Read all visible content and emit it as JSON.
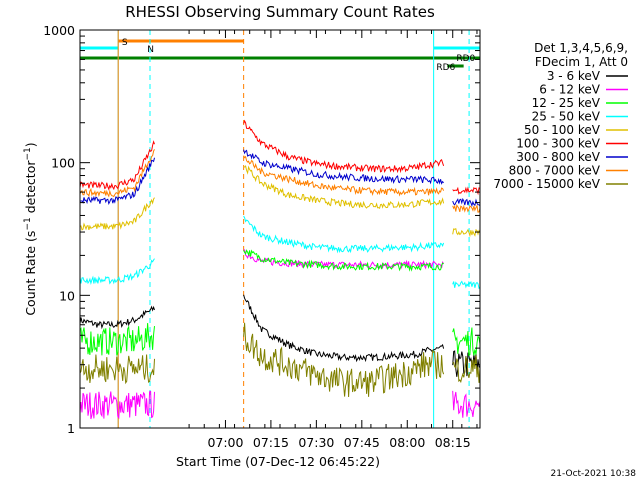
{
  "chart_data": {
    "type": "line",
    "title": "RHESSI Observing Summary Count Rates",
    "xlabel": "Start Time (07-Dec-12 06:45:22)",
    "ylabel": "Count Rate (s⁻¹ detector⁻¹)",
    "ylabel_main": "Count Rate (s",
    "ylabel_mid": " detector",
    "ylabel_end": ")",
    "ylabel_sup": "−1",
    "yscale": "log",
    "xlim_min": [
      6.2,
      8.4
    ],
    "ylim": [
      1,
      1000
    ],
    "x_ticks": [
      {
        "value": 7.0,
        "label": "07:00"
      },
      {
        "value": 7.25,
        "label": "07:15"
      },
      {
        "value": 7.5,
        "label": "07:30"
      },
      {
        "value": 7.75,
        "label": "07:45"
      },
      {
        "value": 8.0,
        "label": "08:00"
      },
      {
        "value": 8.25,
        "label": "08:15"
      }
    ],
    "y_ticks": [
      {
        "value": 1,
        "label": "1"
      },
      {
        "value": 10,
        "label": "10"
      },
      {
        "value": 100,
        "label": "100"
      },
      {
        "value": 1000,
        "label": "1000"
      }
    ],
    "legend": {
      "header": [
        "Det 1,3,4,5,6,9,",
        "FDecim 1, Att 0"
      ],
      "placement": "right"
    },
    "series": [
      {
        "name": "3 - 6 keV",
        "color": "#000000",
        "seg1": [
          6.5,
          6.0,
          6.0,
          6.5,
          8.0
        ],
        "seg2": [
          10.0,
          5.5,
          4.2,
          3.6,
          3.4,
          3.4,
          3.5,
          3.6,
          3.8,
          4.0
        ],
        "seg3": [
          3.0,
          3.0
        ]
      },
      {
        "name": "6 - 12 keV",
        "color": "#ff00ff",
        "seg1": [
          1.5,
          1.5,
          1.5,
          1.5,
          1.5
        ],
        "seg2": [
          21,
          18,
          17.5,
          17,
          17,
          17,
          17,
          17,
          17,
          17
        ],
        "seg3": [
          1.5,
          1.5
        ]
      },
      {
        "name": "12 - 25 keV",
        "color": "#00ff00",
        "seg1": [
          4.5,
          4.5,
          4.5,
          4.5,
          5.0
        ],
        "seg2": [
          22,
          19,
          17.5,
          17,
          16.5,
          16.5,
          16.5,
          16.5,
          16.5,
          16.5
        ],
        "seg3": [
          4.5,
          4.5
        ]
      },
      {
        "name": "25 - 50 keV",
        "color": "#00ffff",
        "seg1": [
          13,
          13,
          13,
          14,
          18
        ],
        "seg2": [
          38,
          28,
          25,
          23,
          22.5,
          22.5,
          23,
          23,
          23.5,
          24
        ],
        "seg3": [
          12,
          12
        ]
      },
      {
        "name": "50 - 100 keV",
        "color": "#e0c000",
        "seg1": [
          33,
          33,
          33,
          36,
          55
        ],
        "seg2": [
          95,
          70,
          57,
          52,
          49,
          48,
          48,
          49,
          50,
          51
        ],
        "seg3": [
          30,
          30
        ]
      },
      {
        "name": "100 - 300 keV",
        "color": "#ff0000",
        "seg1": [
          68,
          67,
          67,
          75,
          140
        ],
        "seg2": [
          200,
          140,
          110,
          98,
          93,
          90,
          90,
          92,
          96,
          100
        ],
        "seg3": [
          62,
          62
        ]
      },
      {
        "name": "300 - 800 keV",
        "color": "#0000cc",
        "seg1": [
          52,
          52,
          52,
          58,
          110
        ],
        "seg2": [
          125,
          100,
          90,
          82,
          78,
          76,
          75,
          75,
          74,
          73
        ],
        "seg3": [
          50,
          50
        ]
      },
      {
        "name": "800 - 7000 keV",
        "color": "#ff8000",
        "seg1": [
          60,
          59,
          59,
          65,
          125
        ],
        "seg2": [
          110,
          85,
          75,
          67,
          63,
          61,
          60,
          60,
          60,
          61
        ],
        "seg3": [
          45,
          45
        ]
      },
      {
        "name": "7000 - 15000 keV",
        "color": "#808000",
        "seg1": [
          2.8,
          2.8,
          2.8,
          2.8,
          2.8
        ],
        "seg2": [
          5.0,
          3.5,
          3.0,
          2.5,
          2.2,
          2.2,
          2.5,
          2.8,
          3.0,
          3.0
        ],
        "seg3": [
          2.8,
          2.8
        ]
      }
    ],
    "flag_labels": [
      {
        "text": "S",
        "color": "#ff8000"
      },
      {
        "text": "N",
        "color": "#00ffff"
      },
      {
        "text": "RD0",
        "color": "#008000"
      },
      {
        "text": "RD6",
        "color": "#008000"
      }
    ],
    "timestamp": "21-Oct-2021 10:38"
  }
}
